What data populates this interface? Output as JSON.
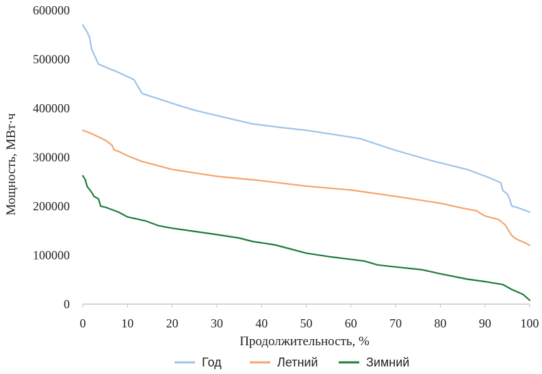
{
  "chart_data": {
    "type": "line",
    "title": "",
    "xlabel": "Продолжительность, %",
    "ylabel": "Мощность, МВт·ч",
    "xlim": [
      0,
      100
    ],
    "ylim": [
      0,
      600000
    ],
    "x_ticks": [
      0,
      10,
      20,
      30,
      40,
      50,
      60,
      70,
      80,
      90,
      100
    ],
    "y_ticks": [
      0,
      100000,
      200000,
      300000,
      400000,
      500000,
      600000
    ],
    "y_tick_labels": [
      "0",
      "100000",
      "200000",
      "300000",
      "400000",
      "500000",
      "600000"
    ],
    "grid": false,
    "legend_position": "bottom",
    "series": [
      {
        "name": "Год",
        "color": "#9DC3E6",
        "points": [
          [
            0,
            570000
          ],
          [
            1,
            555000
          ],
          [
            1.5,
            545000
          ],
          [
            2,
            520000
          ],
          [
            3.5,
            490000
          ],
          [
            8,
            473000
          ],
          [
            11.5,
            458000
          ],
          [
            12.5,
            442000
          ],
          [
            13.3,
            430000
          ],
          [
            20,
            410000
          ],
          [
            25,
            396000
          ],
          [
            30,
            385000
          ],
          [
            38,
            368000
          ],
          [
            45,
            360000
          ],
          [
            50,
            355000
          ],
          [
            55,
            348000
          ],
          [
            62,
            338000
          ],
          [
            70,
            314000
          ],
          [
            78,
            293000
          ],
          [
            86,
            275000
          ],
          [
            91,
            258000
          ],
          [
            93.5,
            248000
          ],
          [
            94,
            232000
          ],
          [
            95,
            225000
          ],
          [
            95.5,
            215000
          ],
          [
            96,
            200000
          ],
          [
            97,
            198000
          ],
          [
            100,
            188000
          ]
        ]
      },
      {
        "name": "Летний",
        "color": "#F4A46B",
        "points": [
          [
            0,
            355000
          ],
          [
            2,
            348000
          ],
          [
            5,
            335000
          ],
          [
            6.5,
            325000
          ],
          [
            7,
            315000
          ],
          [
            8,
            312000
          ],
          [
            10,
            303000
          ],
          [
            13,
            292000
          ],
          [
            20,
            275000
          ],
          [
            25,
            268000
          ],
          [
            30,
            261000
          ],
          [
            40,
            252000
          ],
          [
            50,
            241000
          ],
          [
            60,
            233000
          ],
          [
            70,
            220000
          ],
          [
            80,
            206000
          ],
          [
            85,
            196000
          ],
          [
            88,
            191000
          ],
          [
            90,
            180000
          ],
          [
            93,
            173000
          ],
          [
            94.5,
            162000
          ],
          [
            96,
            140000
          ],
          [
            97,
            133000
          ],
          [
            99,
            125000
          ],
          [
            100,
            120000
          ]
        ]
      },
      {
        "name": "Зимний",
        "color": "#1E7A3A",
        "points": [
          [
            0,
            262000
          ],
          [
            0.5,
            255000
          ],
          [
            1,
            240000
          ],
          [
            2,
            228000
          ],
          [
            2.5,
            220000
          ],
          [
            3.5,
            215000
          ],
          [
            4,
            200000
          ],
          [
            5,
            198000
          ],
          [
            8,
            188000
          ],
          [
            10,
            178000
          ],
          [
            14,
            170000
          ],
          [
            17,
            160000
          ],
          [
            20,
            155000
          ],
          [
            30,
            142000
          ],
          [
            35,
            135000
          ],
          [
            38,
            128000
          ],
          [
            43,
            121000
          ],
          [
            50,
            104000
          ],
          [
            55,
            97000
          ],
          [
            63,
            88000
          ],
          [
            66,
            80000
          ],
          [
            70,
            76000
          ],
          [
            76,
            70000
          ],
          [
            80,
            62000
          ],
          [
            86,
            51000
          ],
          [
            90,
            46000
          ],
          [
            94,
            40000
          ],
          [
            96,
            30000
          ],
          [
            98.5,
            20000
          ],
          [
            100,
            8000
          ]
        ]
      }
    ]
  }
}
